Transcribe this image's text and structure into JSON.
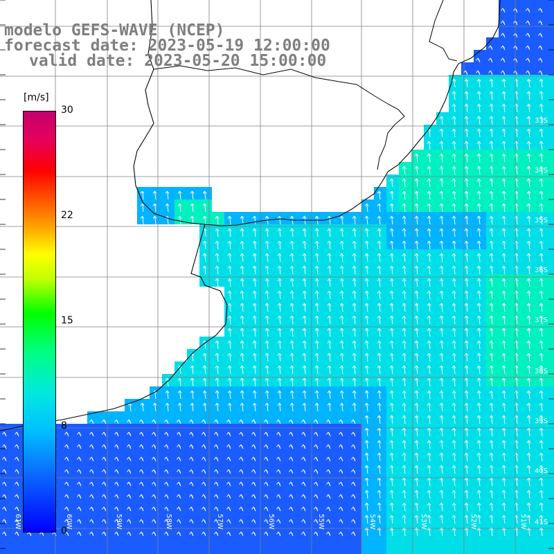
{
  "title": {
    "line1": "modelo GEFS-WAVE (NCEP)",
    "line2": "forecast date: 2023-05-19 12:00:00",
    "line3": "valid date: 2023-05-20 15:00:00"
  },
  "colorbar": {
    "units": "[m/s]",
    "ticks": [
      "30",
      "22",
      "15",
      "8",
      "0"
    ],
    "tick_values": [
      30,
      22,
      15,
      8,
      0
    ],
    "colors": [
      "#0000ff",
      "#00bfff",
      "#00e8e0",
      "#00ff7f",
      "#00ff00",
      "#ffff00",
      "#ff5500",
      "#ff0000",
      "#c2006e"
    ]
  },
  "map": {
    "lon_labels": [
      "61W",
      "60W",
      "59W",
      "58W",
      "57W",
      "56W",
      "55W",
      "54W",
      "53W",
      "52W",
      "51W"
    ],
    "lat_labels": [
      "33S",
      "34S",
      "35S",
      "36S",
      "37S",
      "38S",
      "39S",
      "40S",
      "41S"
    ],
    "ocean_field_colors": {
      "weak": "#1a5cff",
      "moderate": "#00b4ff",
      "strong": "#00dfe8",
      "strongest": "#00f0c0"
    },
    "wind_direction": "north",
    "land_color": "#ffffff",
    "coastline_color": "#000000",
    "grid_color": "#7f7f7f"
  }
}
